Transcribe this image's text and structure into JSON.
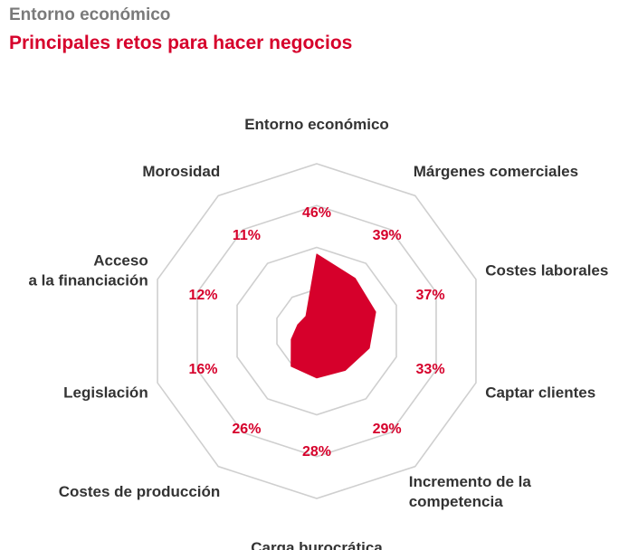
{
  "header": {
    "kicker": "Entorno económico",
    "title": "Principales retos para hacer negocios"
  },
  "colors": {
    "accent": "#d6002b",
    "kicker": "#7a7a7a",
    "grid": "#cfcfcf",
    "label": "#333333"
  },
  "chart_data": {
    "type": "radar",
    "title": "Principales retos para hacer negocios",
    "value_suffix": "%",
    "rmax": 100,
    "grid_levels": [
      25,
      50,
      75,
      100
    ],
    "grid": true,
    "categories": [
      [
        "Entorno económico"
      ],
      [
        "Márgenes comerciales"
      ],
      [
        "Costes laborales"
      ],
      [
        "Captar clientes"
      ],
      [
        "Incremento de la",
        "competencia"
      ],
      [
        "Carga burocrática"
      ],
      [
        "Costes de producción"
      ],
      [
        "Legislación"
      ],
      [
        "Acceso",
        "a la financiación"
      ],
      [
        "Morosidad"
      ]
    ],
    "values": [
      46,
      39,
      37,
      33,
      29,
      28,
      26,
      16,
      12,
      11
    ],
    "series_color": "#d6002b"
  }
}
